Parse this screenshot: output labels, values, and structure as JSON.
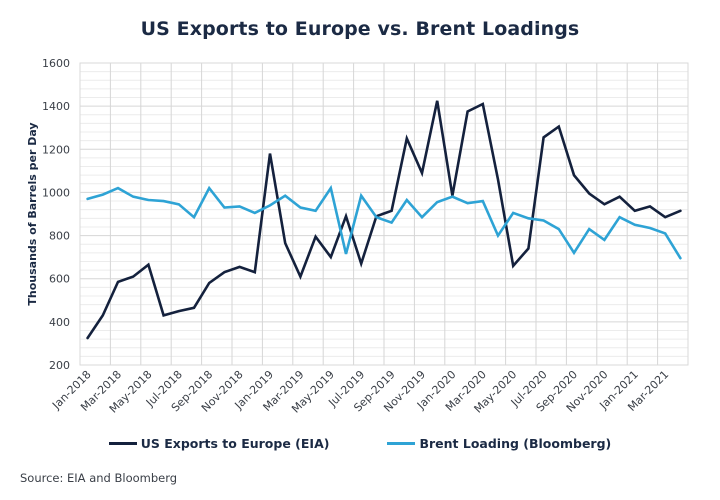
{
  "chart_data": {
    "type": "line",
    "title": "US Exports to Europe vs. Brent Loadings",
    "xlabel": "",
    "ylabel": "Thousands of Barrels per Day",
    "ylim": [
      200,
      1600
    ],
    "yticks": [
      200,
      400,
      600,
      800,
      1000,
      1200,
      1400,
      1600
    ],
    "y_minor_step": 40,
    "grid": true,
    "legend_position": "bottom",
    "x": [
      "Jan-2018",
      "Feb-2018",
      "Mar-2018",
      "Apr-2018",
      "May-2018",
      "Jun-2018",
      "Jul-2018",
      "Aug-2018",
      "Sep-2018",
      "Oct-2018",
      "Nov-2018",
      "Dec-2018",
      "Jan-2019",
      "Feb-2019",
      "Mar-2019",
      "Apr-2019",
      "May-2019",
      "Jun-2019",
      "Jul-2019",
      "Aug-2019",
      "Sep-2019",
      "Oct-2019",
      "Nov-2019",
      "Dec-2019",
      "Jan-2020",
      "Feb-2020",
      "Mar-2020",
      "Apr-2020",
      "May-2020",
      "Jun-2020",
      "Jul-2020",
      "Aug-2020",
      "Sep-2020",
      "Oct-2020",
      "Nov-2020",
      "Dec-2020",
      "Jan-2021",
      "Feb-2021",
      "Mar-2021",
      "Apr-2021"
    ],
    "xtick_labels": [
      "Jan-2018",
      "Mar-2018",
      "May-2018",
      "Jul-2018",
      "Sep-2018",
      "Nov-2018",
      "Jan-2019",
      "Mar-2019",
      "May-2019",
      "Jul-2019",
      "Sep-2019",
      "Nov-2019",
      "Jan-2020",
      "Mar-2020",
      "May-2020",
      "Jul-2020",
      "Sep-2020",
      "Nov-2020",
      "Jan-2021",
      "Mar-2021"
    ],
    "series": [
      {
        "name": "US Exports to Europe (EIA)",
        "color": "#14213d",
        "values": [
          325,
          430,
          585,
          610,
          665,
          430,
          450,
          465,
          580,
          630,
          655,
          630,
          1180,
          765,
          610,
          795,
          700,
          890,
          670,
          890,
          915,
          1250,
          1090,
          1425,
          985,
          1375,
          1410,
          1060,
          660,
          740,
          1255,
          1305,
          1080,
          995,
          945,
          980,
          915,
          935,
          885,
          915
        ]
      },
      {
        "name": "Brent Loading (Bloomberg)",
        "color": "#2ea3d5",
        "values": [
          970,
          990,
          1020,
          980,
          965,
          960,
          945,
          885,
          1020,
          930,
          935,
          905,
          940,
          985,
          930,
          915,
          1020,
          715,
          985,
          885,
          860,
          965,
          885,
          955,
          980,
          950,
          960,
          800,
          905,
          880,
          870,
          830,
          720,
          830,
          780,
          885,
          850,
          835,
          810,
          695
        ]
      }
    ]
  },
  "legend": {
    "items": [
      {
        "label": "US Exports to Europe (EIA)",
        "color": "#14213d"
      },
      {
        "label": "Brent Loading (Bloomberg)",
        "color": "#2ea3d5"
      }
    ]
  },
  "source_note": "Source: EIA and Bloomberg"
}
